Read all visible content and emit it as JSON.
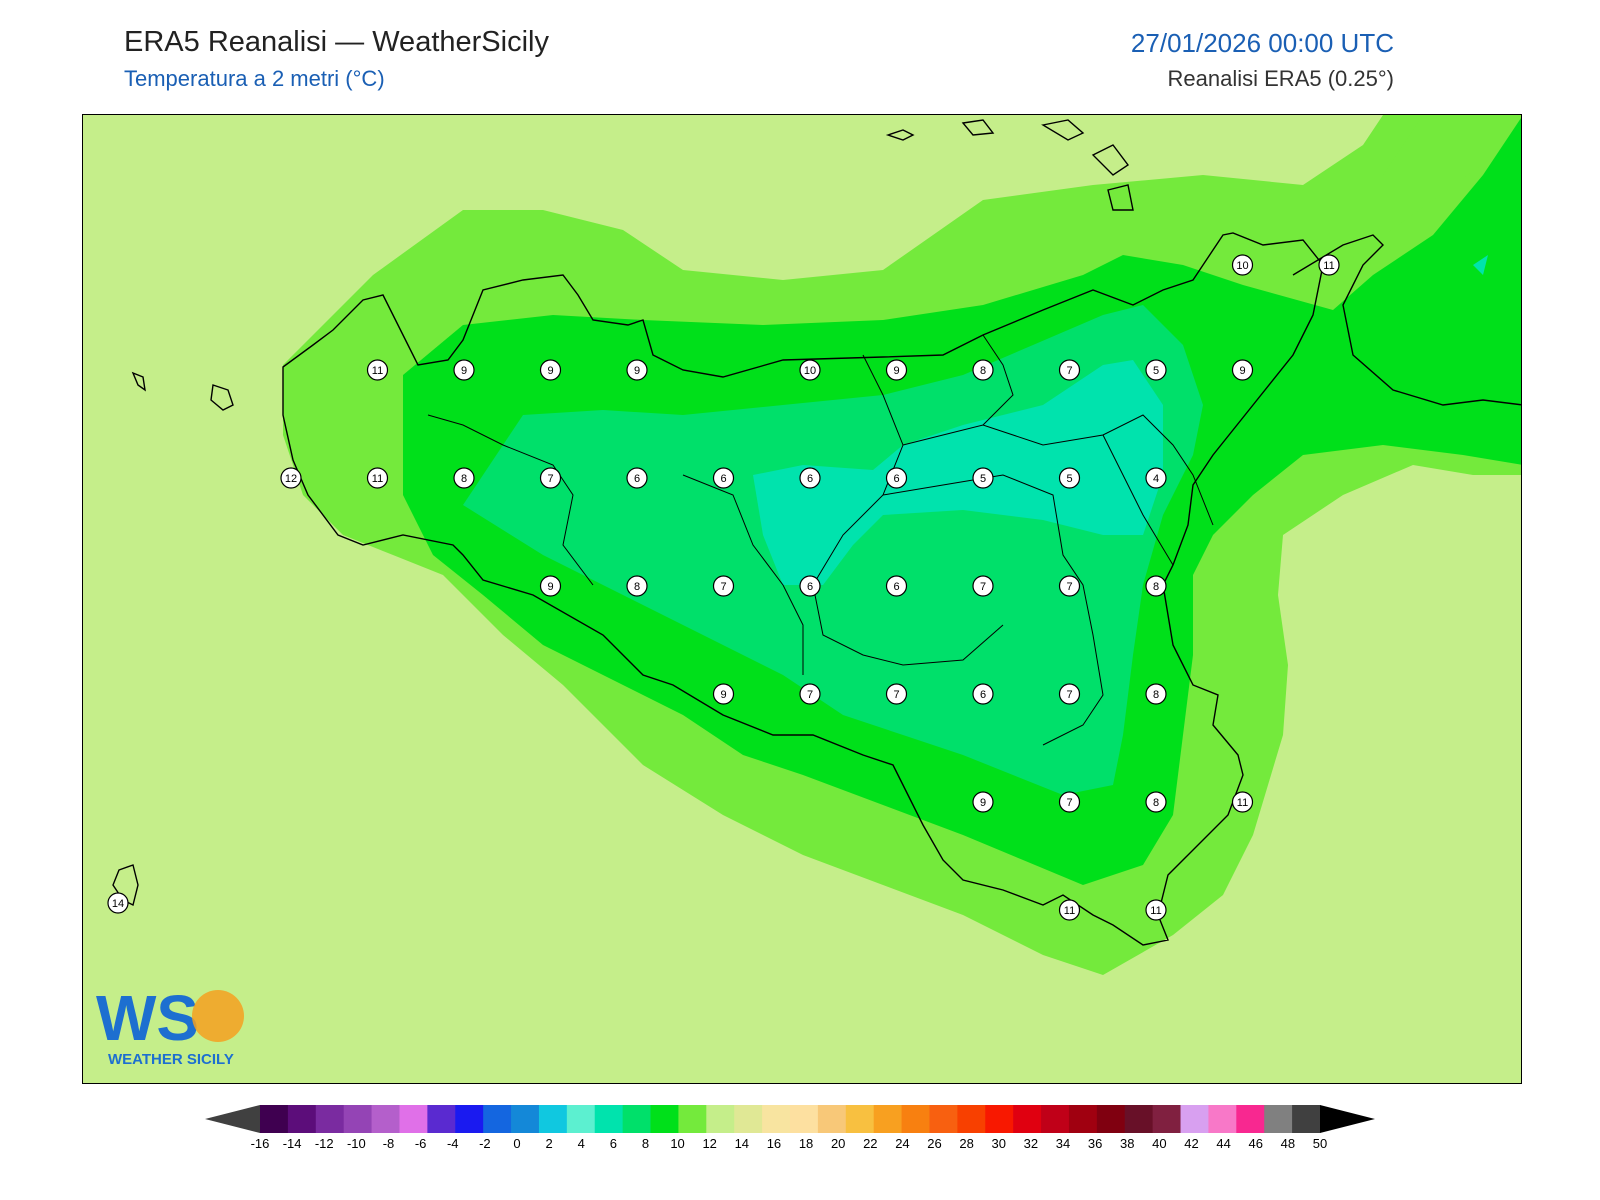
{
  "header": {
    "title": "ERA5 Reanalisi — WeatherSicily",
    "subtitle": "Temperatura a 2 metri (°C)",
    "datetime": "27/01/2026 00:00 UTC",
    "source": "Reanalisi ERA5 (0.25°)"
  },
  "logo": {
    "initials": "WS",
    "name": "WEATHER SICILY"
  },
  "colors": {
    "sea": "#c5ee8a",
    "band_12": "#74ea3c",
    "band_10": "#00e01a",
    "band_8": "#00e06a",
    "band_6": "#00e3ad",
    "coast": "#000000"
  },
  "stations": [
    {
      "v": "11",
      "c": 3,
      "r": 0
    },
    {
      "v": "9",
      "c": 4,
      "r": 0
    },
    {
      "v": "9",
      "c": 5,
      "r": 0
    },
    {
      "v": "9",
      "c": 6,
      "r": 0
    },
    {
      "v": "10",
      "c": 8,
      "r": 0
    },
    {
      "v": "9",
      "c": 9,
      "r": 0
    },
    {
      "v": "8",
      "c": 10,
      "r": 0
    },
    {
      "v": "7",
      "c": 11,
      "r": 0
    },
    {
      "v": "5",
      "c": 12,
      "r": 0
    },
    {
      "v": "9",
      "c": 13,
      "r": 0
    },
    {
      "v": "12",
      "c": 2,
      "r": 1
    },
    {
      "v": "11",
      "c": 3,
      "r": 1
    },
    {
      "v": "8",
      "c": 4,
      "r": 1
    },
    {
      "v": "7",
      "c": 5,
      "r": 1
    },
    {
      "v": "6",
      "c": 6,
      "r": 1
    },
    {
      "v": "6",
      "c": 7,
      "r": 1
    },
    {
      "v": "6",
      "c": 8,
      "r": 1
    },
    {
      "v": "6",
      "c": 9,
      "r": 1
    },
    {
      "v": "5",
      "c": 10,
      "r": 1
    },
    {
      "v": "5",
      "c": 11,
      "r": 1
    },
    {
      "v": "4",
      "c": 12,
      "r": 1
    },
    {
      "v": "9",
      "c": 5,
      "r": 2
    },
    {
      "v": "8",
      "c": 6,
      "r": 2
    },
    {
      "v": "7",
      "c": 7,
      "r": 2
    },
    {
      "v": "6",
      "c": 8,
      "r": 2
    },
    {
      "v": "6",
      "c": 9,
      "r": 2
    },
    {
      "v": "7",
      "c": 10,
      "r": 2
    },
    {
      "v": "7",
      "c": 11,
      "r": 2
    },
    {
      "v": "8",
      "c": 12,
      "r": 2
    },
    {
      "v": "9",
      "c": 7,
      "r": 3
    },
    {
      "v": "7",
      "c": 8,
      "r": 3
    },
    {
      "v": "7",
      "c": 9,
      "r": 3
    },
    {
      "v": "6",
      "c": 10,
      "r": 3
    },
    {
      "v": "7",
      "c": 11,
      "r": 3
    },
    {
      "v": "8",
      "c": 12,
      "r": 3
    },
    {
      "v": "9",
      "c": 10,
      "r": 4
    },
    {
      "v": "7",
      "c": 11,
      "r": 4
    },
    {
      "v": "8",
      "c": 12,
      "r": 4
    },
    {
      "v": "11",
      "c": 13,
      "r": 4
    },
    {
      "v": "11",
      "c": 11,
      "r": 5
    },
    {
      "v": "11",
      "c": 12,
      "r": 5
    },
    {
      "v": "10",
      "c": 13,
      "r": -1
    },
    {
      "v": "11",
      "c": 14,
      "r": -1
    },
    {
      "v": "14",
      "c": 0,
      "r": 5
    }
  ],
  "colorbar": {
    "ticks": [
      "-16",
      "-14",
      "-12",
      "-10",
      "-8",
      "-6",
      "-4",
      "-2",
      "0",
      "2",
      "4",
      "6",
      "8",
      "10",
      "12",
      "14",
      "16",
      "18",
      "20",
      "22",
      "24",
      "26",
      "28",
      "30",
      "32",
      "34",
      "36",
      "38",
      "40",
      "42",
      "44",
      "46",
      "48",
      "50"
    ],
    "colors": [
      "#3f0050",
      "#5c0d7a",
      "#7a2ba0",
      "#9444b5",
      "#b45fcb",
      "#e070e8",
      "#5a2ad0",
      "#1a1af0",
      "#1466e0",
      "#1488d8",
      "#10c8e0",
      "#5cf0d0",
      "#00e3ad",
      "#00e06a",
      "#00e01a",
      "#74ea3c",
      "#c5ee8a",
      "#e0e895",
      "#f8e4a0",
      "#fde0a0",
      "#f8c878",
      "#f8c040",
      "#f8a020",
      "#f88010",
      "#f86010",
      "#f84000",
      "#f81800",
      "#e00010",
      "#c00018",
      "#a00010",
      "#800010",
      "#681028",
      "#802040",
      "#d8a0f0",
      "#f878c8",
      "#f82890",
      "#808080",
      "#404040"
    ],
    "under_color": "#404040",
    "over_color": "#000000"
  }
}
